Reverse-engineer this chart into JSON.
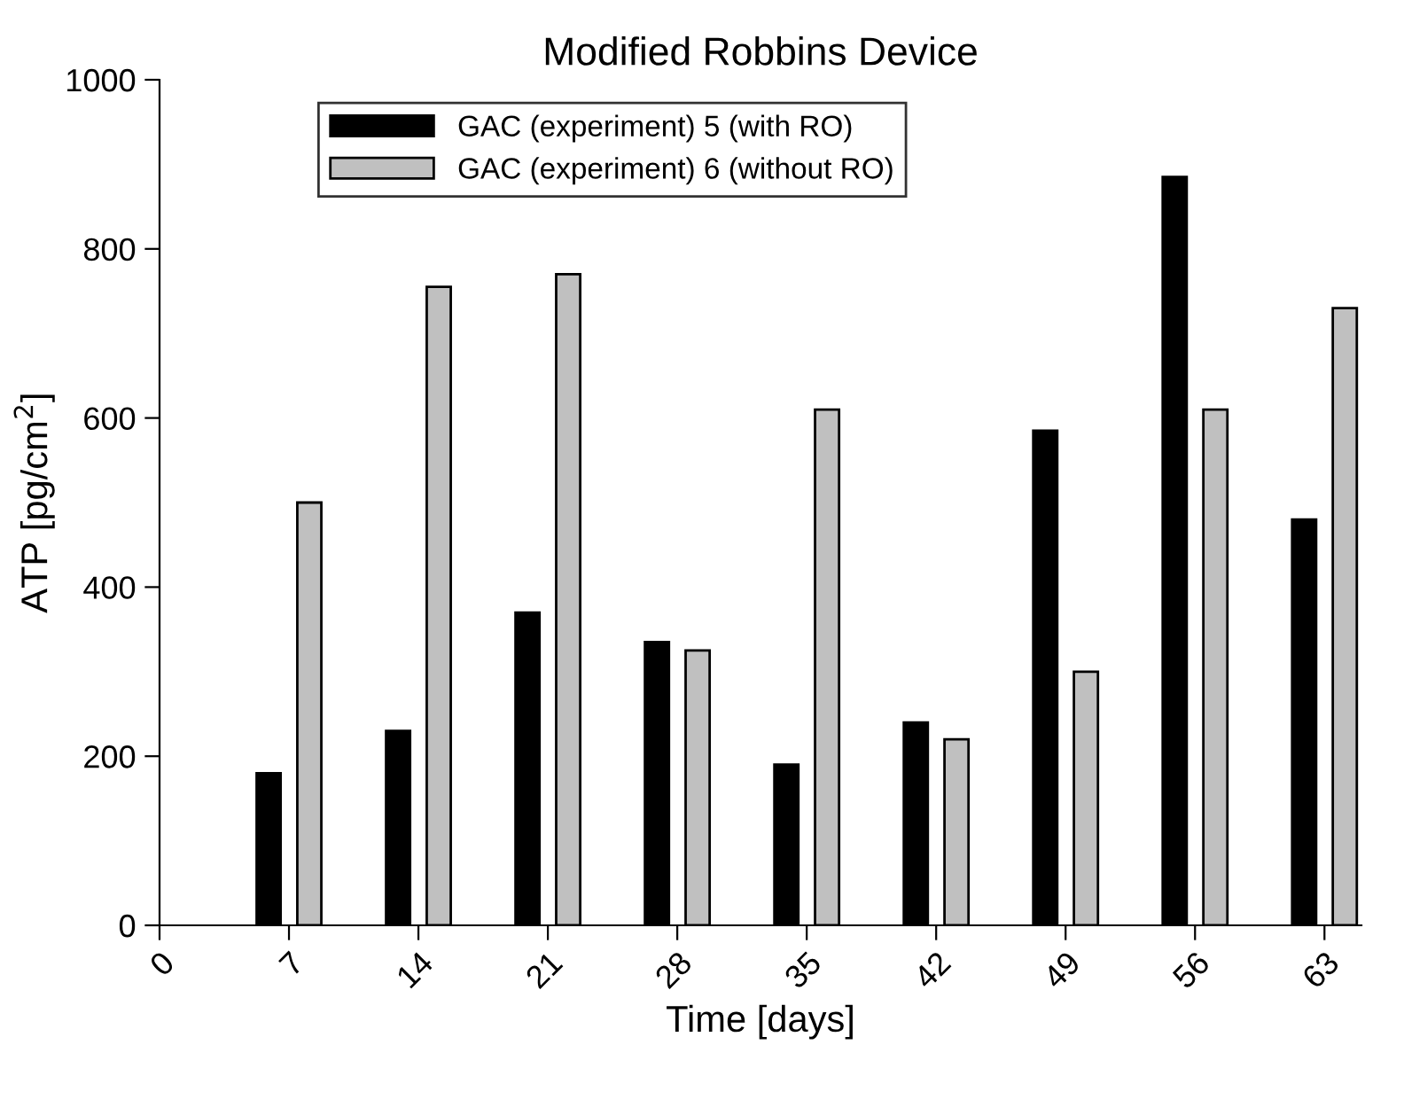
{
  "chart_data": {
    "type": "bar",
    "title": "Modified Robbins Device",
    "xlabel": "Time [days]",
    "ylabel": "ATP [pg/cm$^{2}$]",
    "xlim": [
      0,
      65
    ],
    "xticks": [
      0,
      7,
      14,
      21,
      28,
      35,
      42,
      49,
      56,
      63
    ],
    "ylim": [
      0,
      1000
    ],
    "yticks": [
      0,
      200,
      400,
      600,
      800,
      1000
    ],
    "grid": false,
    "legend": "top left",
    "series": [
      {
        "name": "GAC (experiment) 5 (with RO)",
        "color": "#000000",
        "x": [
          5.9,
          12.9,
          19.9,
          26.9,
          33.9,
          40.9,
          47.9,
          54.9,
          61.9
        ],
        "values": [
          180,
          230,
          370,
          335,
          190,
          240,
          585,
          885,
          480
        ]
      },
      {
        "name": "GAC (experiment) 6 (without RO)",
        "color": "#c0c0c0",
        "x": [
          8.1,
          15.1,
          22.1,
          29.1,
          36.1,
          43.1,
          50.1,
          57.1,
          64.1
        ],
        "values": [
          500,
          755,
          770,
          325,
          610,
          220,
          300,
          610,
          730
        ]
      }
    ]
  }
}
